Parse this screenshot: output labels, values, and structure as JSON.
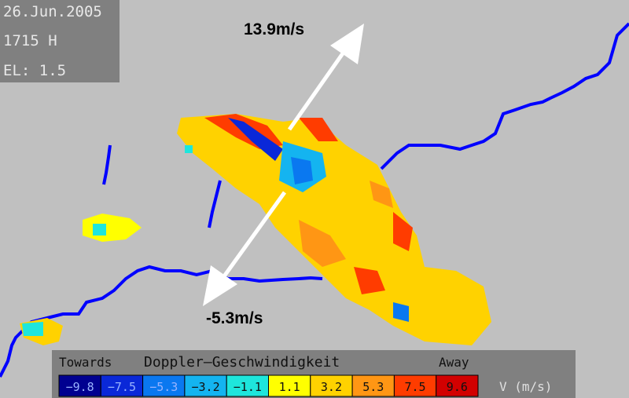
{
  "header": {
    "date": "26.Jun.2005",
    "time": "1715 H",
    "elevation": "EL: 1.5"
  },
  "arrows": {
    "away_speed": "13.9m/s",
    "towards_speed": "-5.3m/s"
  },
  "legend": {
    "towards": "Towards",
    "title": "Doppler—Geschwindigkeit",
    "away": "Away",
    "unit": "V  (m/s)",
    "items": [
      {
        "label": "−9.8",
        "color": "#000090"
      },
      {
        "label": "−7.5",
        "color": "#0a28d8"
      },
      {
        "label": "−5.3",
        "color": "#0a78f0"
      },
      {
        "label": "−3.2",
        "color": "#14b4f0"
      },
      {
        "label": "−1.1",
        "color": "#1ee6dc"
      },
      {
        "label": "1.1",
        "color": "#ffff00"
      },
      {
        "label": "3.2",
        "color": "#ffd200"
      },
      {
        "label": "5.3",
        "color": "#ff9614"
      },
      {
        "label": "7.5",
        "color": "#ff3c00"
      },
      {
        "label": "9.6",
        "color": "#d20000"
      }
    ]
  }
}
